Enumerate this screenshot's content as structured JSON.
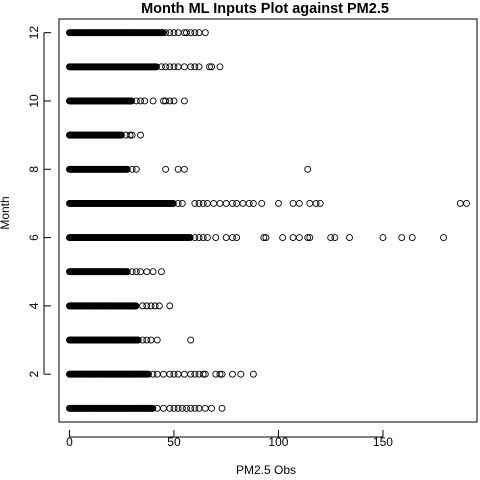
{
  "chart_data": {
    "type": "scatter",
    "title": "Month ML Inputs Plot against PM2.5",
    "xlabel": "PM2.5 Obs",
    "ylabel": "Month",
    "xlim": [
      -5,
      195
    ],
    "ylim": [
      0.6,
      12.4
    ],
    "x_ticks": [
      0,
      50,
      100,
      150
    ],
    "y_ticks": [
      2,
      4,
      6,
      8,
      10,
      12
    ],
    "x_tick_labels": [
      "0",
      "50",
      "100",
      "150"
    ],
    "y_tick_labels": [
      "2",
      "4",
      "6",
      "8",
      "10",
      "12"
    ],
    "grid": false,
    "legend": "none",
    "point_color": "#000000",
    "series": [
      {
        "month": 1,
        "dense_max": 40,
        "x": [
          42,
          45,
          48,
          50,
          52,
          54,
          56,
          58,
          60,
          62,
          65,
          68,
          73
        ]
      },
      {
        "month": 2,
        "dense_max": 38,
        "x": [
          40,
          42,
          45,
          48,
          50,
          52,
          55,
          58,
          60,
          62,
          64,
          65,
          70,
          72,
          73,
          78,
          82,
          88
        ]
      },
      {
        "month": 3,
        "dense_max": 33,
        "x": [
          35,
          37,
          39,
          42,
          58
        ]
      },
      {
        "month": 4,
        "dense_max": 32,
        "x": [
          35,
          37,
          39,
          41,
          43,
          48
        ]
      },
      {
        "month": 5,
        "dense_max": 28,
        "x": [
          30,
          32,
          34,
          37,
          40,
          44
        ]
      },
      {
        "month": 6,
        "dense_max": 58,
        "x": [
          60,
          62,
          64,
          66,
          70,
          75,
          78,
          80,
          93,
          94,
          102,
          107,
          110,
          114,
          115,
          125,
          127,
          134,
          150,
          159,
          164,
          179
        ]
      },
      {
        "month": 7,
        "dense_max": 50,
        "x": [
          52,
          54,
          60,
          62,
          64,
          66,
          69,
          72,
          75,
          78,
          80,
          83,
          86,
          88,
          92,
          100,
          107,
          110,
          115,
          118,
          120,
          187,
          190
        ]
      },
      {
        "month": 8,
        "dense_max": 28,
        "x": [
          30,
          32,
          46,
          52,
          55,
          114
        ]
      },
      {
        "month": 9,
        "dense_max": 25,
        "x": [
          27,
          29,
          30,
          34
        ]
      },
      {
        "month": 10,
        "dense_max": 30,
        "x": [
          32,
          34,
          36,
          40,
          45,
          46,
          48,
          50,
          55
        ]
      },
      {
        "month": 11,
        "dense_max": 42,
        "x": [
          44,
          46,
          48,
          50,
          52,
          55,
          58,
          60,
          62,
          67,
          68,
          72
        ]
      },
      {
        "month": 12,
        "dense_max": 45,
        "x": [
          46,
          48,
          50,
          52,
          55,
          56,
          58,
          60,
          62,
          65
        ]
      }
    ]
  }
}
